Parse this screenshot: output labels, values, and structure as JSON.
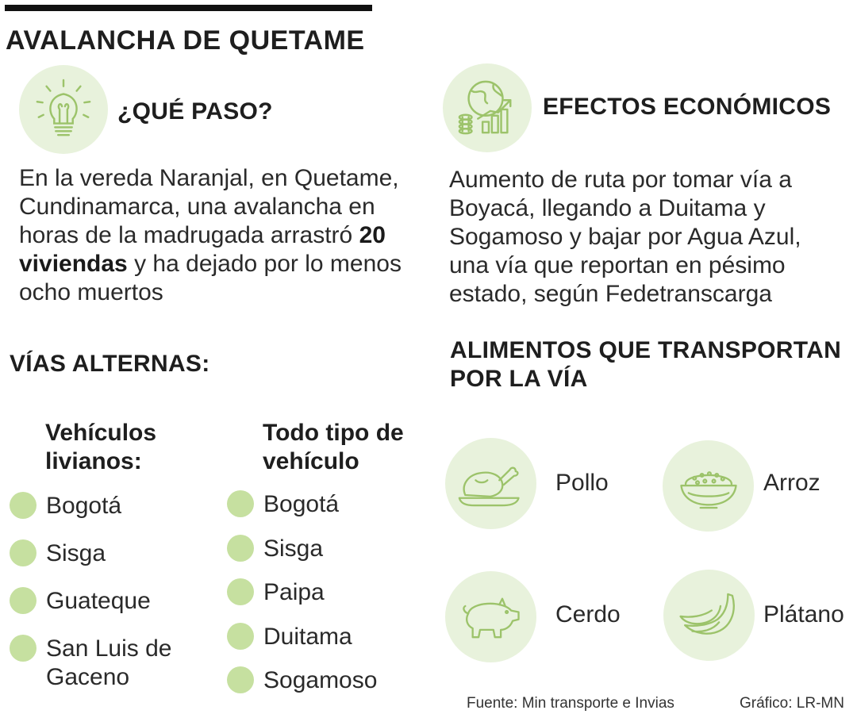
{
  "title": "AVALANCHA DE QUETAME",
  "que_paso": {
    "heading": "¿QUÉ PASO?",
    "text_before": "En la vereda Naranjal, en Quetame, Cundinamarca, una avalancha en horas de la madrugada arrastró",
    "text_bold": "20 viviendas",
    "text_after": "y ha dejado por lo menos ocho muertos",
    "icon": "lightbulb-icon"
  },
  "efectos": {
    "heading": "EFECTOS ECONÓMICOS",
    "text": "Aumento de ruta por tomar vía a Boyacá, llegando a Duitama y Sogamoso y bajar por Agua Azul, una vía que reportan en pésimo estado, según Fedetranscarga",
    "icon": "globe-growth-icon"
  },
  "vias": {
    "heading": "VÍAS ALTERNAS:",
    "livianos": {
      "heading": "Vehículos livianos:",
      "items": [
        "Bogotá",
        "Sisga",
        "Guateque",
        "San Luis de Gaceno"
      ]
    },
    "todo_tipo": {
      "heading": "Todo tipo de vehículo",
      "items": [
        "Bogotá",
        "Sisga",
        "Paipa",
        "Duitama",
        "Sogamoso"
      ]
    }
  },
  "alimentos": {
    "heading": "ALIMENTOS QUE TRANSPORTAN POR LA VÍA",
    "items": [
      {
        "label": "Pollo",
        "icon": "chicken-icon"
      },
      {
        "label": "Arroz",
        "icon": "rice-bowl-icon"
      },
      {
        "label": "Cerdo",
        "icon": "pig-icon"
      },
      {
        "label": "Plátano",
        "icon": "banana-icon"
      }
    ]
  },
  "footer": {
    "source": "Fuente: Min transporte e Invias",
    "credit": "Gráfico: LR-MN"
  },
  "colors": {
    "accent_light": "#e8f2dc",
    "dot_green": "#c6e0a0",
    "icon_stroke": "#9cc36a"
  }
}
